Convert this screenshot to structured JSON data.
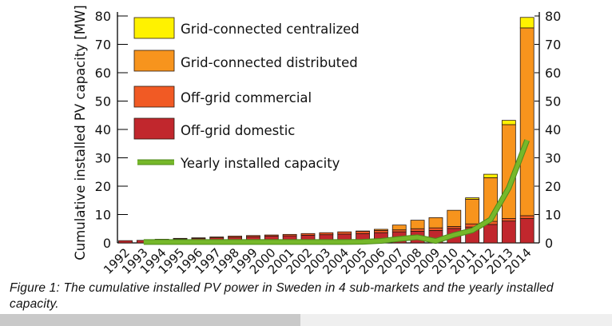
{
  "chart_data": {
    "type": "bar",
    "stacked": true,
    "ylabel": "Cumulative installed PV capacity [MW]",
    "ylim": [
      0,
      80
    ],
    "yticks": [
      0,
      10,
      20,
      30,
      40,
      50,
      60,
      70,
      80
    ],
    "secondary_yaxis": {
      "ylim": [
        0,
        80
      ],
      "yticks": [
        0,
        10,
        20,
        30,
        40,
        50,
        60,
        70,
        80
      ]
    },
    "legend_placement": "top-left",
    "categories": [
      "1992",
      "1993",
      "1994",
      "1995",
      "1996",
      "1997",
      "1998",
      "1999",
      "2000",
      "2001",
      "2002",
      "2003",
      "2004",
      "2005",
      "2006",
      "2007",
      "2008",
      "2009",
      "2010",
      "2011",
      "2012",
      "2013",
      "2014"
    ],
    "series": [
      {
        "name": "Off-grid domestic",
        "color": "#c1272d",
        "values": [
          0.8,
          0.9,
          1.2,
          1.4,
          1.6,
          1.8,
          2.0,
          2.2,
          2.4,
          2.5,
          2.7,
          2.9,
          3.1,
          3.3,
          3.6,
          3.9,
          4.1,
          4.4,
          5.1,
          5.6,
          6.5,
          7.7,
          8.6
        ]
      },
      {
        "name": "Off-grid commercial",
        "color": "#f15a24",
        "values": [
          0,
          0,
          0.1,
          0.2,
          0.2,
          0.3,
          0.4,
          0.4,
          0.4,
          0.5,
          0.6,
          0.7,
          0.8,
          0.8,
          0.8,
          0.7,
          0.9,
          0.9,
          0.7,
          1.1,
          1.1,
          0.9,
          1.0
        ]
      },
      {
        "name": "Grid-connected distributed",
        "color": "#f7941d",
        "values": [
          0,
          0,
          0,
          0,
          0,
          0,
          0,
          0,
          0,
          0,
          0,
          0,
          0,
          0.1,
          0.4,
          1.7,
          3.0,
          3.6,
          5.7,
          8.7,
          15.4,
          33.1,
          66.2
        ]
      },
      {
        "name": "Grid-connected centralized",
        "color": "#fff200",
        "values": [
          0,
          0,
          0,
          0,
          0,
          0,
          0,
          0,
          0,
          0,
          0,
          0,
          0,
          0,
          0,
          0,
          0,
          0,
          0,
          0.5,
          1.2,
          1.5,
          3.7
        ]
      }
    ],
    "line_series": {
      "name": "Yearly installed capacity",
      "color": "#76b82a",
      "categories": [
        "1993",
        "1994",
        "1995",
        "1996",
        "1997",
        "1998",
        "1999",
        "2000",
        "2001",
        "2002",
        "2003",
        "2004",
        "2005",
        "2006",
        "2007",
        "2008",
        "2009",
        "2010",
        "2011",
        "2012",
        "2013",
        "2014"
      ],
      "values": [
        0.3,
        0.3,
        0.3,
        0.3,
        0.3,
        0.3,
        0.3,
        0.3,
        0.3,
        0.3,
        0.3,
        0.3,
        0.4,
        0.7,
        1.4,
        2.0,
        0.7,
        2.8,
        4.4,
        8.2,
        19.4,
        36.2
      ]
    }
  },
  "caption": {
    "line1": "Figure 1:  The cumulative installed PV power in Sweden in 4 sub-markets and the yearly installed",
    "line2": "capacity."
  }
}
